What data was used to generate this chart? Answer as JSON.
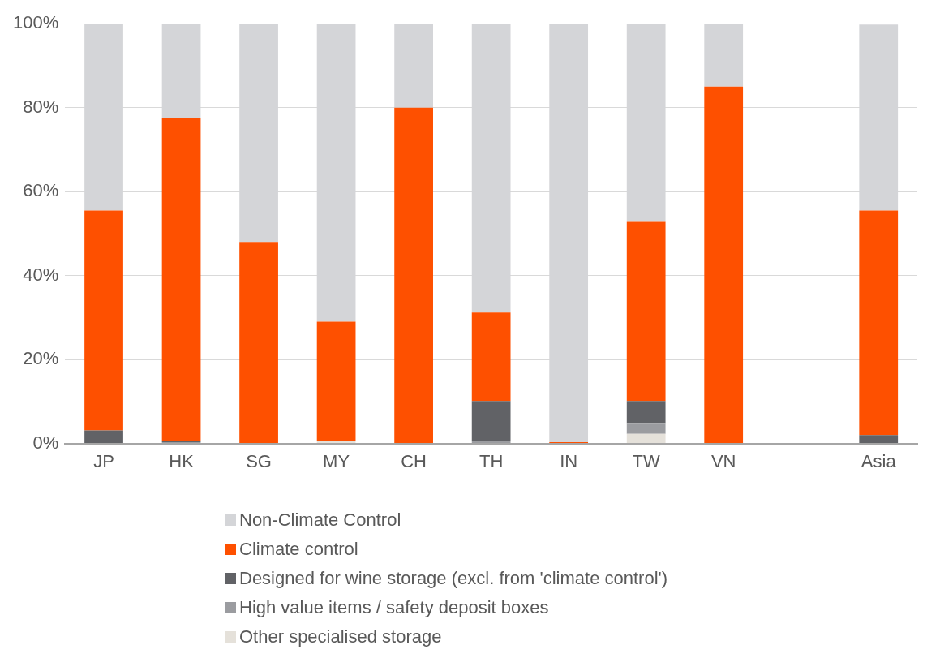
{
  "chart_data": {
    "type": "bar",
    "stacked": true,
    "categories": [
      "JP",
      "HK",
      "SG",
      "MY",
      "CH",
      "TH",
      "IN",
      "TW",
      "VN",
      null,
      "Asia"
    ],
    "series": [
      {
        "name": "Other specialised storage",
        "color": "#e5e1da",
        "values": [
          0,
          0,
          0,
          0.7,
          0,
          0,
          0,
          2.3,
          0,
          null,
          0
        ]
      },
      {
        "name": "High value items / safety deposit boxes",
        "color": "#9b9ca0",
        "values": [
          0,
          0.3,
          0,
          0,
          0,
          0.6,
          0,
          2.6,
          0,
          null,
          null
        ]
      },
      {
        "name": "Designed for wine storage (excl. from 'climate control')",
        "color": "#616266",
        "values": [
          3.1,
          0.3,
          0,
          0,
          0,
          9.5,
          0,
          5.2,
          0,
          null,
          2
        ]
      },
      {
        "name": "Climate control",
        "color": "#fe5000",
        "values": [
          52.4,
          76.9,
          48,
          28.3,
          80,
          21.1,
          0.3,
          42.9,
          85,
          null,
          53.5
        ]
      },
      {
        "name": "Non-Climate Control",
        "color": "#d4d5d8",
        "values": [
          44.5,
          22.5,
          52,
          71,
          20,
          68.8,
          99.7,
          47,
          15,
          null,
          44.3
        ]
      }
    ],
    "ylim": [
      0,
      100
    ],
    "yticks": [
      {
        "value": 0,
        "label": "0%"
      },
      {
        "value": 20,
        "label": "20%"
      },
      {
        "value": 40,
        "label": "40%"
      },
      {
        "value": 60,
        "label": "60%"
      },
      {
        "value": 80,
        "label": "80%"
      },
      {
        "value": 100,
        "label": "100%"
      }
    ],
    "grid": "y",
    "legend": "bottom"
  }
}
